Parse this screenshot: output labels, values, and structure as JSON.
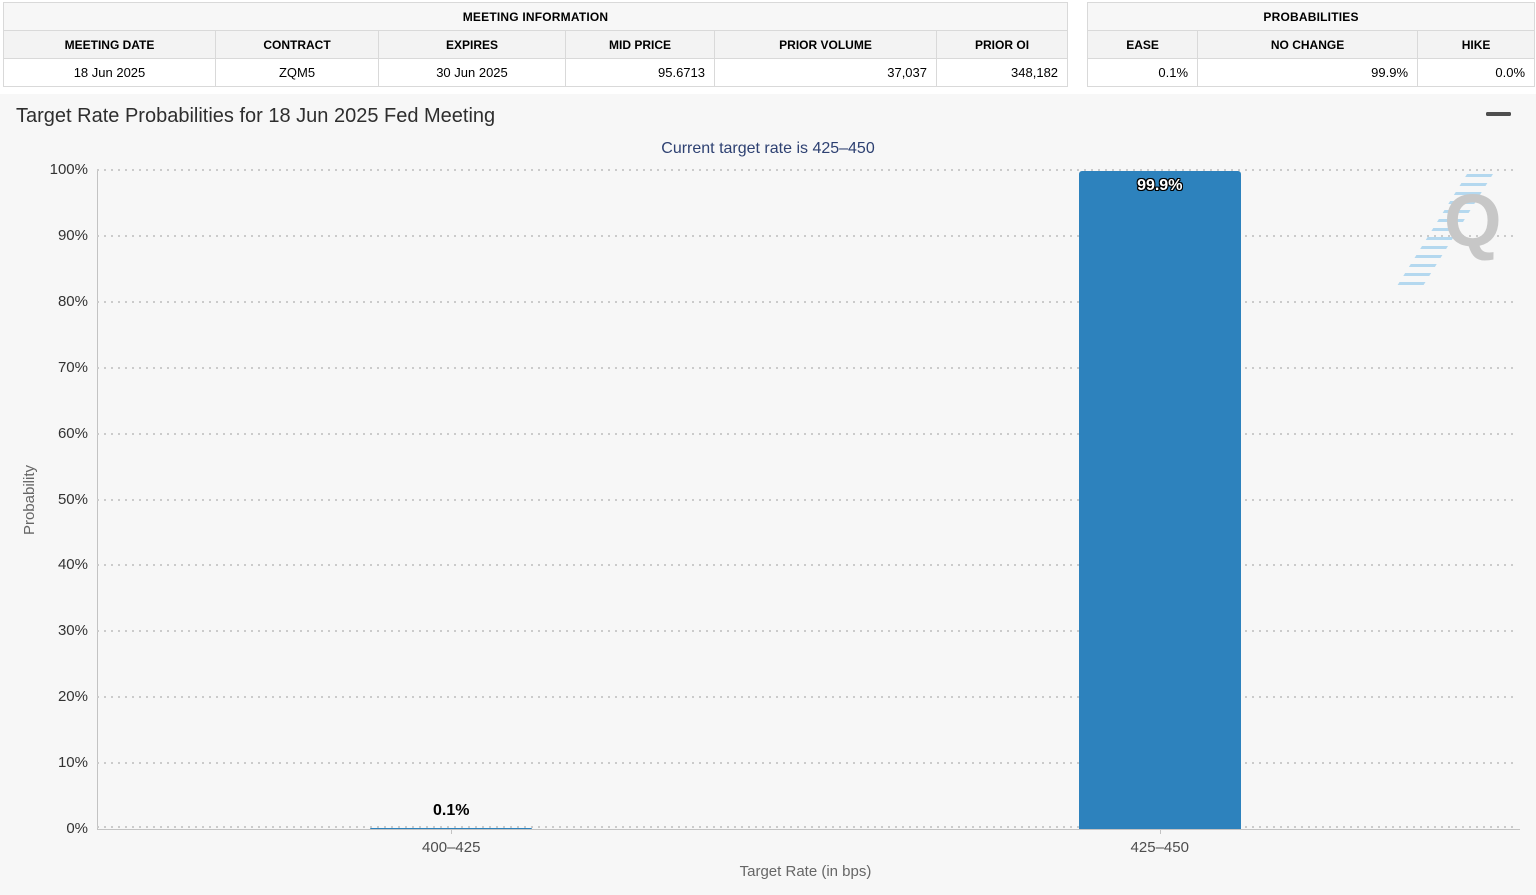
{
  "meeting_info": {
    "title": "MEETING INFORMATION",
    "headers": [
      "MEETING DATE",
      "CONTRACT",
      "EXPIRES",
      "MID PRICE",
      "PRIOR VOLUME",
      "PRIOR OI"
    ],
    "values": [
      "18 Jun 2025",
      "ZQM5",
      "30 Jun 2025",
      "95.6713",
      "37,037",
      "348,182"
    ]
  },
  "probabilities": {
    "title": "PROBABILITIES",
    "headers": [
      "EASE",
      "NO CHANGE",
      "HIKE"
    ],
    "values": [
      "0.1%",
      "99.9%",
      "0.0%"
    ]
  },
  "chart_data": {
    "type": "bar",
    "title": "Target Rate Probabilities for 18 Jun 2025 Fed Meeting",
    "subtitle": "Current target rate is 425–450",
    "categories": [
      "400–425",
      "425–450"
    ],
    "values": [
      0.1,
      99.9
    ],
    "value_labels": [
      "0.1%",
      "99.9%"
    ],
    "xlabel": "Target Rate (in bps)",
    "ylabel": "Probability",
    "ylim": [
      0,
      100
    ],
    "ytick_step": 10,
    "ytick_suffix": "%",
    "grid": "dotted-horizontal",
    "legend": "none",
    "bar_color": "#2d82bd"
  },
  "watermark": {
    "text": "Q"
  },
  "icons": {
    "chart_menu": "hamburger-menu-icon",
    "watermark": "quikstrike-q-watermark"
  },
  "colors": {
    "bar": "#2d82bd",
    "subtitle_text": "#2e4172",
    "chart_background": "#f7f7f7"
  }
}
